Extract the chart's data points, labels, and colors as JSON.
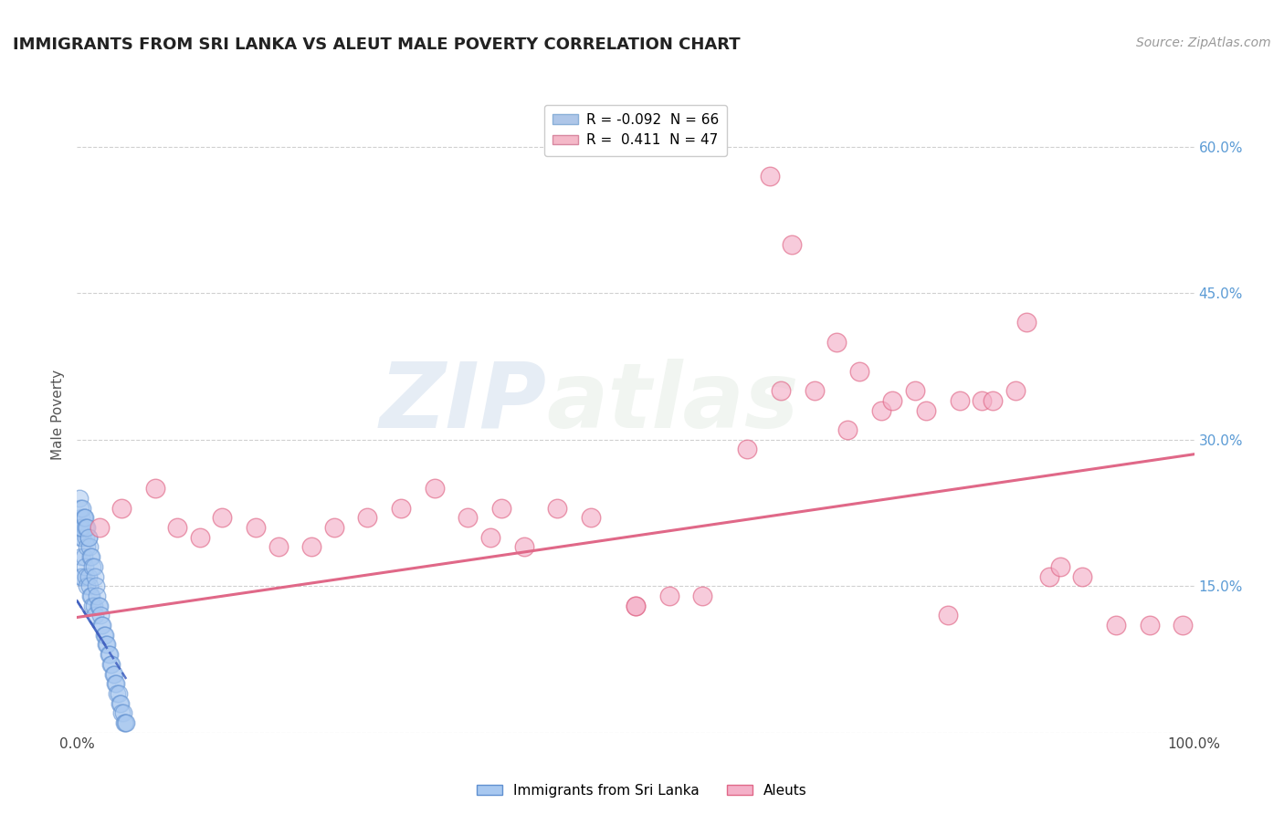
{
  "title": "IMMIGRANTS FROM SRI LANKA VS ALEUT MALE POVERTY CORRELATION CHART",
  "source": "Source: ZipAtlas.com",
  "ylabel": "Male Poverty",
  "ytick_labels": [
    "",
    "15.0%",
    "30.0%",
    "45.0%",
    "60.0%"
  ],
  "ytick_values": [
    0.0,
    0.15,
    0.3,
    0.45,
    0.6
  ],
  "legend_entries": [
    {
      "label": "R = -0.092  N = 66",
      "color": "#aec6e8"
    },
    {
      "label": "R =  0.411  N = 47",
      "color": "#f4b8c8"
    }
  ],
  "legend_bottom": [
    "Immigrants from Sri Lanka",
    "Aleuts"
  ],
  "watermark_zip": "ZIP",
  "watermark_atlas": "atlas",
  "blue_scatter_x": [
    0.003,
    0.003,
    0.004,
    0.004,
    0.005,
    0.005,
    0.006,
    0.006,
    0.007,
    0.007,
    0.008,
    0.008,
    0.009,
    0.009,
    0.01,
    0.01,
    0.011,
    0.011,
    0.012,
    0.012,
    0.013,
    0.013,
    0.014,
    0.014,
    0.015,
    0.015,
    0.016,
    0.016,
    0.017,
    0.018,
    0.019,
    0.02,
    0.021,
    0.022,
    0.023,
    0.024,
    0.025,
    0.026,
    0.027,
    0.028,
    0.029,
    0.03,
    0.031,
    0.032,
    0.033,
    0.034,
    0.035,
    0.036,
    0.037,
    0.038,
    0.039,
    0.04,
    0.041,
    0.042,
    0.043,
    0.044,
    0.002,
    0.002,
    0.003,
    0.004,
    0.005,
    0.006,
    0.007,
    0.008,
    0.009,
    0.01
  ],
  "blue_scatter_y": [
    0.2,
    0.16,
    0.22,
    0.18,
    0.2,
    0.16,
    0.22,
    0.18,
    0.21,
    0.17,
    0.2,
    0.16,
    0.19,
    0.15,
    0.2,
    0.16,
    0.19,
    0.15,
    0.18,
    0.14,
    0.18,
    0.14,
    0.17,
    0.13,
    0.17,
    0.13,
    0.16,
    0.12,
    0.15,
    0.14,
    0.13,
    0.13,
    0.12,
    0.11,
    0.11,
    0.1,
    0.1,
    0.09,
    0.09,
    0.08,
    0.08,
    0.07,
    0.07,
    0.06,
    0.06,
    0.05,
    0.05,
    0.04,
    0.04,
    0.03,
    0.03,
    0.02,
    0.02,
    0.01,
    0.01,
    0.01,
    0.24,
    0.21,
    0.23,
    0.21,
    0.23,
    0.22,
    0.22,
    0.21,
    0.21,
    0.2
  ],
  "blue_line_x": [
    0.0,
    0.044
  ],
  "blue_line_y": [
    0.135,
    0.055
  ],
  "pink_scatter_x": [
    0.02,
    0.04,
    0.07,
    0.09,
    0.11,
    0.13,
    0.16,
    0.18,
    0.21,
    0.23,
    0.26,
    0.29,
    0.32,
    0.35,
    0.37,
    0.4,
    0.43,
    0.46,
    0.5,
    0.53,
    0.56,
    0.6,
    0.63,
    0.66,
    0.69,
    0.72,
    0.75,
    0.78,
    0.81,
    0.84,
    0.87,
    0.9,
    0.93,
    0.96,
    0.99,
    0.62,
    0.64,
    0.68,
    0.7,
    0.73,
    0.76,
    0.79,
    0.82,
    0.85,
    0.88,
    0.38,
    0.5
  ],
  "pink_scatter_y": [
    0.21,
    0.23,
    0.25,
    0.21,
    0.2,
    0.22,
    0.21,
    0.19,
    0.19,
    0.21,
    0.22,
    0.23,
    0.25,
    0.22,
    0.2,
    0.19,
    0.23,
    0.22,
    0.13,
    0.14,
    0.14,
    0.29,
    0.35,
    0.35,
    0.31,
    0.33,
    0.35,
    0.12,
    0.34,
    0.35,
    0.16,
    0.16,
    0.11,
    0.11,
    0.11,
    0.57,
    0.5,
    0.4,
    0.37,
    0.34,
    0.33,
    0.34,
    0.34,
    0.42,
    0.17,
    0.23,
    0.13
  ],
  "pink_line_x": [
    0.0,
    1.0
  ],
  "pink_line_y": [
    0.118,
    0.285
  ],
  "xmin": 0.0,
  "xmax": 1.0,
  "ymin": 0.0,
  "ymax": 0.65,
  "bg_color": "#ffffff",
  "grid_color": "#d0d0d0",
  "title_color": "#222222",
  "axis_label_color": "#555555",
  "tick_color_right": "#5b9bd5",
  "blue_dot_color": "#a8c8f0",
  "blue_dot_edge": "#6090d0",
  "pink_dot_color": "#f4b0c8",
  "pink_dot_edge": "#e06888",
  "blue_line_color": "#4060c0",
  "pink_line_color": "#e06888",
  "title_fontsize": 13,
  "source_fontsize": 10,
  "legend_fontsize": 11,
  "axis_fontsize": 11
}
